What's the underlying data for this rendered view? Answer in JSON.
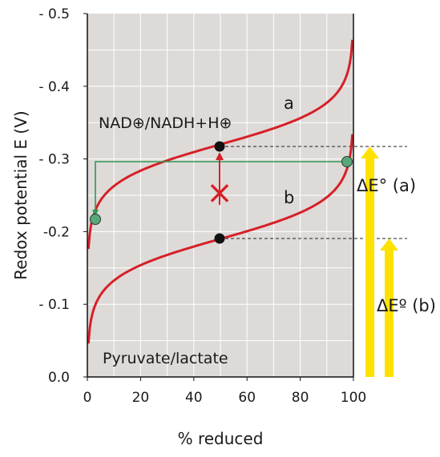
{
  "chart_data": {
    "type": "line",
    "title": "",
    "xlabel": "% reduced",
    "ylabel": "Redox potential E (V)",
    "xlim": [
      0,
      100
    ],
    "ylim": [
      0,
      0.5
    ],
    "x_ticks": [
      "0",
      "20",
      "40",
      "60",
      "80",
      "100"
    ],
    "y_ticks": [
      "0.0",
      "- 0.1",
      "-0.2",
      "- 0.3",
      "- 0.4",
      "- 0.5"
    ],
    "grid": true,
    "colors": {
      "curve": "#d62028",
      "marker": "#111111",
      "green": "#2e9a52",
      "arrow_yellow": "#ffe100",
      "background": "#dedad8",
      "grid": "#ffffff"
    },
    "series": [
      {
        "name": "a",
        "label": "NAD⊕/NADH+H⊕",
        "midpoint": [
          50,
          0.32
        ],
        "span": 0.12
      },
      {
        "name": "b",
        "label": "Pyruvate/lactate",
        "midpoint": [
          50,
          0.19
        ],
        "span": 0.12
      }
    ],
    "green_points": [
      [
        3,
        0.218
      ],
      [
        98,
        0.297
      ]
    ],
    "annotations": {
      "curve_a": "a",
      "curve_b": "b",
      "label_a": "NAD⊕/NADH+H⊕",
      "label_b": "Pyruvate/lactate",
      "delta_a": "ΔE° (a)",
      "delta_b": "ΔEº (b)",
      "cross": "×"
    }
  }
}
